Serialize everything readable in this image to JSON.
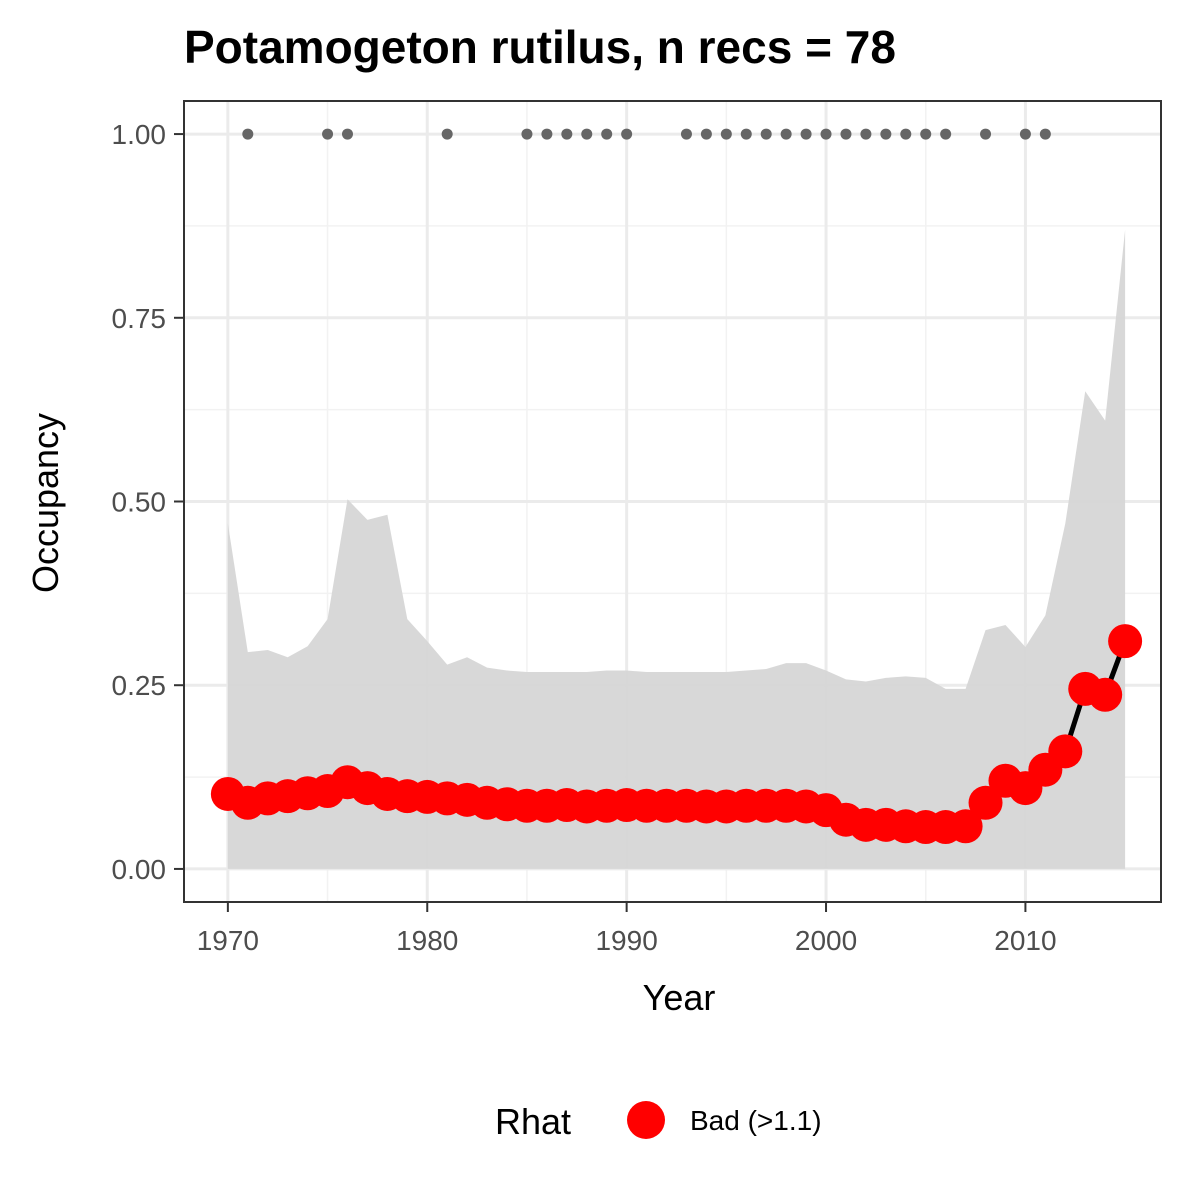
{
  "chart_data": {
    "type": "line",
    "title": "Potamogeton rutilus, n recs = 78",
    "xlabel": "Year",
    "ylabel": "Occupancy",
    "xlim": [
      1967.8,
      2016.8
    ],
    "ylim": [
      -0.045,
      1.045
    ],
    "x_ticks": [
      1970,
      1980,
      1990,
      2000,
      2010
    ],
    "x_tick_labels": [
      "1970",
      "1980",
      "1990",
      "2000",
      "2010"
    ],
    "y_ticks": [
      0,
      0.25,
      0.5,
      0.75,
      1.0
    ],
    "y_tick_labels": [
      "0.00",
      "0.25",
      "0.50",
      "0.75",
      "1.00"
    ],
    "grid": true,
    "legend": {
      "title": "Rhat",
      "position": "bottom",
      "entries": [
        {
          "label": "Bad (>1.1)",
          "color": "#ff0000"
        }
      ]
    },
    "x": [
      1970,
      1971,
      1972,
      1973,
      1974,
      1975,
      1976,
      1977,
      1978,
      1979,
      1980,
      1981,
      1982,
      1983,
      1984,
      1985,
      1986,
      1987,
      1988,
      1989,
      1990,
      1991,
      1992,
      1993,
      1994,
      1995,
      1996,
      1997,
      1998,
      1999,
      2000,
      2001,
      2002,
      2003,
      2004,
      2005,
      2006,
      2007,
      2008,
      2009,
      2010,
      2011,
      2012,
      2013,
      2014,
      2015
    ],
    "series": [
      {
        "type": "line-points",
        "rhat": "Bad (>1.1)",
        "color": "#ff0000",
        "line_color": "#000000",
        "values": [
          0.102,
          0.09,
          0.096,
          0.099,
          0.103,
          0.106,
          0.118,
          0.11,
          0.102,
          0.099,
          0.098,
          0.096,
          0.094,
          0.09,
          0.088,
          0.086,
          0.086,
          0.087,
          0.085,
          0.086,
          0.087,
          0.086,
          0.086,
          0.086,
          0.085,
          0.085,
          0.086,
          0.086,
          0.086,
          0.085,
          0.08,
          0.067,
          0.06,
          0.06,
          0.058,
          0.057,
          0.057,
          0.058,
          0.09,
          0.12,
          0.11,
          0.135,
          0.16,
          0.245,
          0.237,
          0.31
        ]
      },
      {
        "type": "band",
        "name": "",
        "color": "#d6d6d6",
        "lower": [
          0,
          0,
          0,
          0,
          0,
          0,
          0,
          0,
          0,
          0,
          0,
          0,
          0,
          0,
          0,
          0,
          0,
          0,
          0,
          0,
          0,
          0,
          0,
          0,
          0,
          0,
          0,
          0,
          0,
          0,
          0,
          0,
          0,
          0,
          0,
          0,
          0,
          0,
          0,
          0,
          0,
          0,
          0,
          0,
          0,
          0
        ],
        "upper": [
          0.47,
          0.295,
          0.298,
          0.288,
          0.303,
          0.34,
          0.503,
          0.475,
          0.482,
          0.34,
          0.31,
          0.278,
          0.288,
          0.274,
          0.27,
          0.268,
          0.268,
          0.268,
          0.268,
          0.27,
          0.27,
          0.268,
          0.268,
          0.268,
          0.268,
          0.268,
          0.27,
          0.272,
          0.28,
          0.28,
          0.27,
          0.258,
          0.255,
          0.26,
          0.262,
          0.26,
          0.245,
          0.245,
          0.325,
          0.332,
          0.302,
          0.345,
          0.47,
          0.65,
          0.61,
          0.87
        ]
      },
      {
        "type": "record-points",
        "name": "",
        "color": "#666666",
        "x": [
          1971,
          1975,
          1976,
          1981,
          1985,
          1986,
          1987,
          1988,
          1989,
          1990,
          1993,
          1994,
          1995,
          1996,
          1997,
          1998,
          1999,
          2000,
          2001,
          2002,
          2003,
          2004,
          2005,
          2006,
          2008,
          2010,
          2011
        ],
        "y": 1.0
      }
    ]
  }
}
